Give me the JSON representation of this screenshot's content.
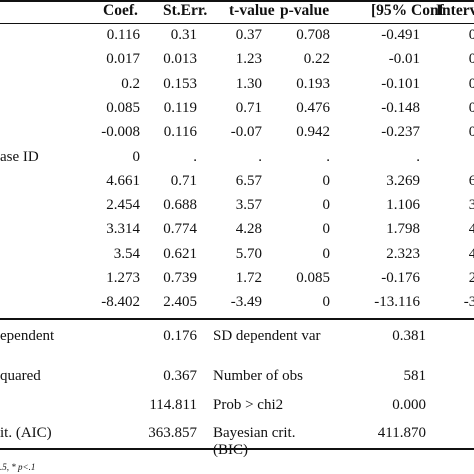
{
  "table": {
    "headers": [
      {
        "key": "label",
        "text": ""
      },
      {
        "key": "coef",
        "text": "Coef."
      },
      {
        "key": "sterr",
        "text": "St.Err."
      },
      {
        "key": "tval",
        "text": "t-value"
      },
      {
        "key": "pval",
        "text": "p-value"
      },
      {
        "key": "ci_low",
        "text": "[95% Conf"
      },
      {
        "key": "ci_high",
        "text": "Interv"
      }
    ],
    "rows": [
      {
        "label": "",
        "coef": "0.116",
        "sterr": "0.31",
        "tval": "0.37",
        "pval": "0.708",
        "ci_low": "-0.491",
        "ci_high": "0."
      },
      {
        "label": "",
        "coef": "0.017",
        "sterr": "0.013",
        "tval": "1.23",
        "pval": "0.22",
        "ci_low": "-0.01",
        "ci_high": "0."
      },
      {
        "label": "",
        "coef": "0.2",
        "sterr": "0.153",
        "tval": "1.30",
        "pval": "0.193",
        "ci_low": "-0.101",
        "ci_high": "0."
      },
      {
        "label": "",
        "coef": "0.085",
        "sterr": "0.119",
        "tval": "0.71",
        "pval": "0.476",
        "ci_low": "-0.148",
        "ci_high": "0."
      },
      {
        "label": "",
        "coef": "-0.008",
        "sterr": "0.116",
        "tval": "-0.07",
        "pval": "0.942",
        "ci_low": "-0.237",
        "ci_high": "0."
      },
      {
        "label": "ase ID",
        "coef": "0",
        "sterr": ".",
        "tval": ".",
        "pval": ".",
        "ci_low": ".",
        "ci_high": ""
      },
      {
        "label": "",
        "coef": "4.661",
        "sterr": "0.71",
        "tval": "6.57",
        "pval": "0",
        "ci_low": "3.269",
        "ci_high": "6."
      },
      {
        "label": "",
        "coef": "2.454",
        "sterr": "0.688",
        "tval": "3.57",
        "pval": "0",
        "ci_low": "1.106",
        "ci_high": "3."
      },
      {
        "label": "",
        "coef": "3.314",
        "sterr": "0.774",
        "tval": "4.28",
        "pval": "0",
        "ci_low": "1.798",
        "ci_high": "4."
      },
      {
        "label": "",
        "coef": "3.54",
        "sterr": "0.621",
        "tval": "5.70",
        "pval": "0",
        "ci_low": "2.323",
        "ci_high": "4."
      },
      {
        "label": "",
        "coef": "1.273",
        "sterr": "0.739",
        "tval": "1.72",
        "pval": "0.085",
        "ci_low": "-0.176",
        "ci_high": "2."
      },
      {
        "label": "",
        "coef": "-8.402",
        "sterr": "2.405",
        "tval": "-3.49",
        "pval": "0",
        "ci_low": "-13.116",
        "ci_high": "-3."
      }
    ]
  },
  "stats": [
    {
      "left_label": "ependent",
      "left_value": "0.176",
      "right_label": "SD dependent var",
      "right_value": "0.381"
    },
    {
      "left_label": "quared",
      "left_value": "0.367",
      "right_label": "Number of obs",
      "right_value": "581"
    },
    {
      "left_label": "",
      "left_value": "114.811",
      "right_label": "Prob > chi2",
      "right_value": "0.000"
    },
    {
      "left_label": "it. (AIC)",
      "left_value": "363.857",
      "right_label": "Bayesian crit.",
      "right_label2": "(BIC)",
      "right_value": "411.870"
    }
  ],
  "footnote": ".5, * p<.1"
}
